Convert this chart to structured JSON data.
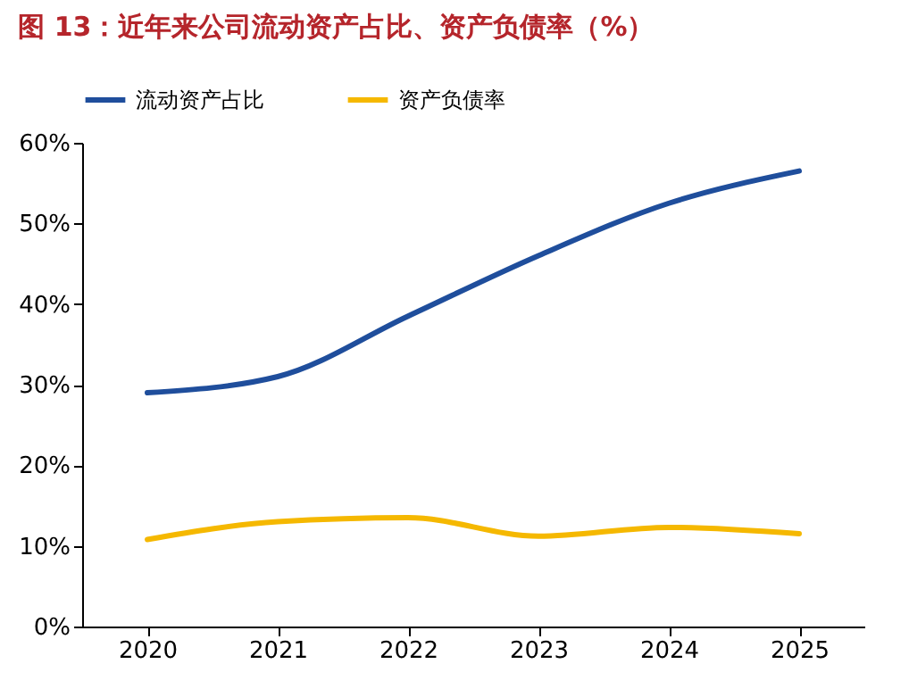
{
  "chart_data": {
    "type": "line",
    "title": "图 13：近年来公司流动资产占比、资产负债率（%）",
    "categories": [
      "2020",
      "2021",
      "2022",
      "2023",
      "2024",
      "2025"
    ],
    "series": [
      {
        "name": "流动资产占比",
        "color": "#1f4e9c",
        "values": [
          29,
          31,
          38.5,
          46,
          52.5,
          56.5
        ]
      },
      {
        "name": "资产负债率",
        "color": "#f5b800",
        "values": [
          10.8,
          13,
          13.5,
          11.2,
          12.3,
          11.5
        ]
      }
    ],
    "ylim": [
      0,
      60
    ],
    "yticks": [
      {
        "value": 0,
        "label": "0%"
      },
      {
        "value": 10,
        "label": "10%"
      },
      {
        "value": 20,
        "label": "20%"
      },
      {
        "value": 30,
        "label": "30%"
      },
      {
        "value": 40,
        "label": "40%"
      },
      {
        "value": 50,
        "label": "50%"
      },
      {
        "value": 60,
        "label": "60%"
      }
    ],
    "grid": false,
    "legend": "top",
    "marker": "none",
    "line_style": "solid"
  }
}
